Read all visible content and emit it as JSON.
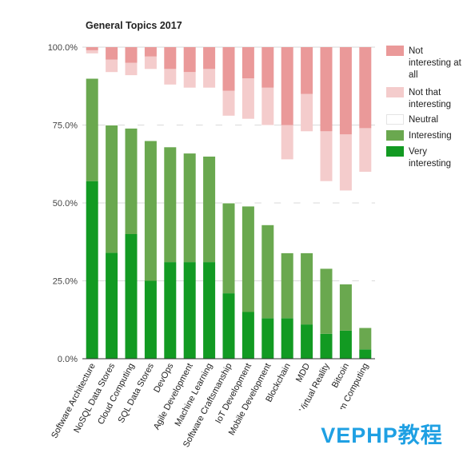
{
  "chart_data": {
    "type": "bar",
    "stacked": true,
    "title": "General Topics 2017",
    "y_ticks": [
      "0.0%",
      "25.0%",
      "50.0%",
      "75.0%",
      "100.0%"
    ],
    "ylim": [
      0,
      100
    ],
    "legend_position": "right",
    "categories": [
      "Software Architecture",
      "NoSQL Data Stores",
      "Cloud Computing",
      "SQL Data Stores",
      "DevOps",
      "Agile Development",
      "Machine Learning",
      "Software Craftsmanship",
      "IoT Development",
      "Mobile Development",
      "Blockchain",
      "MDD",
      "Virtual Reality",
      "Bitcoin",
      "Quantum Computing"
    ],
    "series": [
      {
        "name": "Very interesting",
        "color": "#129a22",
        "values": [
          57,
          34,
          40,
          25,
          31,
          31,
          31,
          21,
          15,
          13,
          13,
          11,
          8,
          9,
          3
        ]
      },
      {
        "name": "Interesting",
        "color": "#6aa84f",
        "values": [
          33,
          41,
          34,
          45,
          37,
          35,
          34,
          29,
          34,
          30,
          21,
          23,
          21,
          15,
          7
        ]
      },
      {
        "name": "Neutral",
        "color": "#ffffff",
        "values": [
          8,
          17,
          17,
          23,
          20,
          21,
          22,
          28,
          28,
          32,
          30,
          39,
          28,
          30,
          50
        ]
      },
      {
        "name": "Not that interesting",
        "color": "#f4cccc",
        "values": [
          1,
          4,
          4,
          4,
          5,
          5,
          6,
          8,
          13,
          12,
          11,
          12,
          16,
          18,
          14
        ]
      },
      {
        "name": "Not interesting at all",
        "color": "#ea9999",
        "values": [
          1,
          4,
          5,
          3,
          7,
          8,
          7,
          14,
          10,
          13,
          25,
          15,
          27,
          28,
          26
        ]
      }
    ],
    "legend": [
      {
        "label": "Not interesting at all",
        "color": "#ea9999"
      },
      {
        "label": "Not that interesting",
        "color": "#f4cccc"
      },
      {
        "label": "Neutral",
        "color": "#ffffff"
      },
      {
        "label": "Interesting",
        "color": "#6aa84f"
      },
      {
        "label": "Very interesting",
        "color": "#129a22"
      }
    ]
  },
  "watermark": "VEPHP教程"
}
